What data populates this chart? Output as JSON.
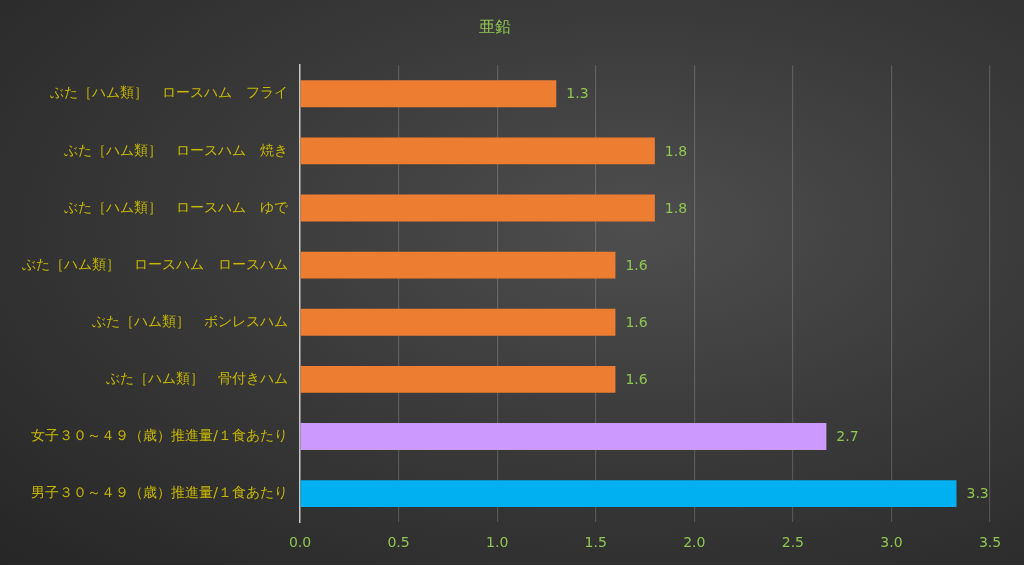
{
  "chart_data": {
    "type": "bar",
    "orientation": "horizontal",
    "title": "亜鉛",
    "categories": [
      "ぶた［ハム類］　ロースハム　フライ",
      "ぶた［ハム類］　ロースハム　焼き",
      "ぶた［ハム類］　ロースハム　ゆで",
      "ぶた［ハム類］　ロースハム　ロースハム",
      "ぶた［ハム類］　ボンレスハム",
      "ぶた［ハム類］　骨付きハム",
      "女子３０～４９（歳）推進量/１食あたり",
      "男子３０～４９（歳）推進量/１食あたり"
    ],
    "values": [
      1.3,
      1.8,
      1.8,
      1.6,
      1.6,
      1.6,
      2.67,
      3.33
    ],
    "value_labels": [
      "1.3",
      "1.8",
      "1.8",
      "1.6",
      "1.6",
      "1.6",
      "2.7",
      "3.3"
    ],
    "colors": [
      "#ed7d31",
      "#ed7d31",
      "#ed7d31",
      "#ed7d31",
      "#ed7d31",
      "#ed7d31",
      "#cc99ff",
      "#00b0f0"
    ],
    "xlim": [
      0,
      3.5
    ],
    "xticks": [
      {
        "value": 0,
        "label": "0.0"
      },
      0.5,
      {
        "value": 1,
        "label": "1.0"
      },
      1.5,
      {
        "value": 2,
        "label": "2.0"
      },
      2.5,
      {
        "value": 3,
        "label": "3.0"
      },
      3.5
    ],
    "grid": "x",
    "legend": false
  }
}
